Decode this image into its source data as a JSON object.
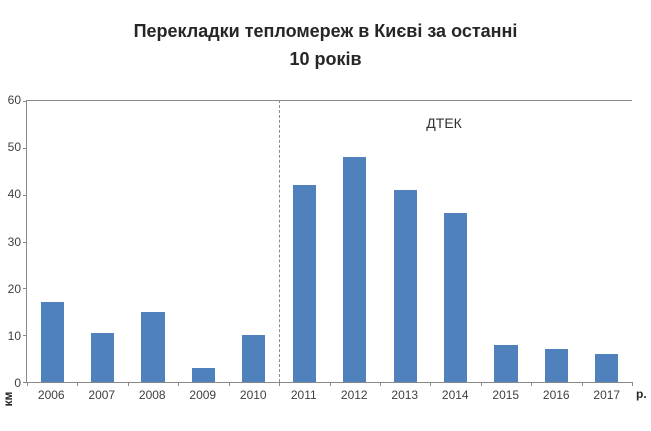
{
  "chart_data": {
    "type": "bar",
    "title": "Перекладки тепломереж в Києві за останні 10 років",
    "title_lines": [
      "Перекладки тепломереж в Києві за останні",
      "10 років"
    ],
    "categories": [
      "2006",
      "2007",
      "2008",
      "2009",
      "2010",
      "2011",
      "2012",
      "2013",
      "2014",
      "2015",
      "2016",
      "2017"
    ],
    "values": [
      17,
      10.5,
      15,
      3,
      10,
      42,
      48,
      41,
      36,
      8,
      7,
      6
    ],
    "xlabel": "р.",
    "ylabel": "км",
    "ylim": [
      0,
      60
    ],
    "yticks": [
      0,
      10,
      20,
      30,
      40,
      50,
      60
    ],
    "annotation": "ДТЕК",
    "divider_after_category": "2010",
    "bar_color": "#4f81bd",
    "grid": false,
    "legend": "none"
  }
}
